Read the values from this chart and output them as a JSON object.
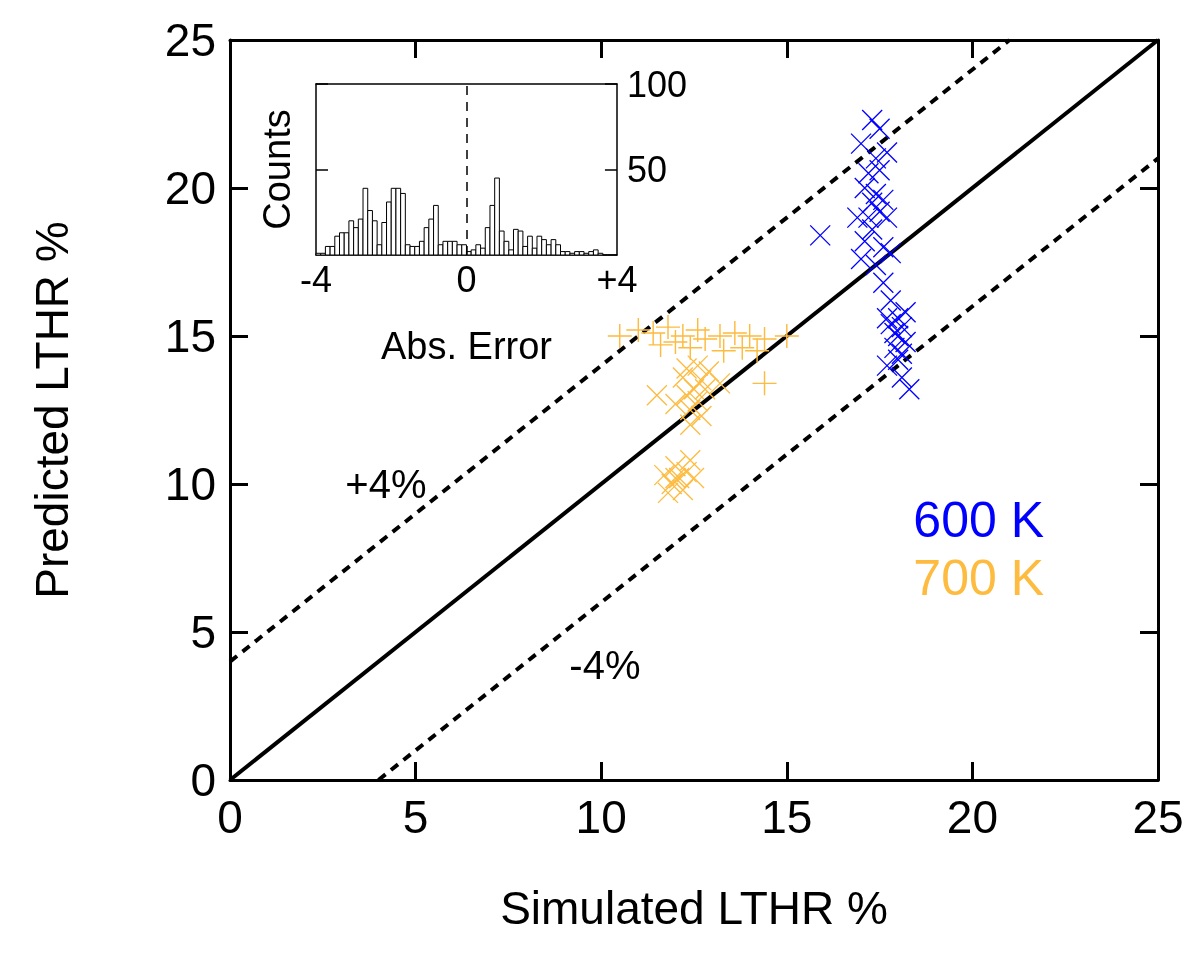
{
  "chart_data": [
    {
      "type": "scatter",
      "xlabel": "Simulated LTHR %",
      "ylabel": "Predicted LTHR %",
      "xlim": [
        0,
        25
      ],
      "ylim": [
        0,
        25
      ],
      "xticks": [
        0,
        5,
        10,
        15,
        20,
        25
      ],
      "yticks": [
        0,
        5,
        10,
        15,
        20,
        25
      ],
      "grid": false,
      "legend": "right",
      "annotations": [
        "+4%",
        "-4%"
      ],
      "series": [
        {
          "type": "line",
          "color": "#000000",
          "line_style": "solid",
          "marker": "none",
          "x": [
            0,
            25
          ],
          "values": [
            0,
            25
          ]
        },
        {
          "type": "line",
          "color": "#000000",
          "line_style": "dashed",
          "marker": "none",
          "x": [
            0,
            21
          ],
          "values": [
            4,
            25
          ]
        },
        {
          "type": "line",
          "color": "#000000",
          "line_style": "dashed",
          "marker": "none",
          "x": [
            4,
            25
          ],
          "values": [
            0,
            21
          ]
        },
        {
          "name": "600 K",
          "color": "#0000ff",
          "marker": "cross",
          "x": [
            17.3,
            17.2,
            17.4,
            17.5,
            17.1,
            17.3,
            17.6,
            17.2,
            17.4,
            17.0,
            17.5,
            17.3,
            17.7,
            17.1,
            17.6,
            17.0,
            17.4,
            17.8,
            17.5,
            16.9,
            17.7,
            15.9,
            17.6,
            17.8,
            17.7,
            18.0,
            17.9,
            18.1,
            17.8,
            18.2,
            18.0,
            17.7,
            18.1,
            18.3,
            18.2,
            17.9,
            18.0,
            18.1
          ],
          "values": [
            19.5,
            19.0,
            19.8,
            19.2,
            20.0,
            18.6,
            19.6,
            20.5,
            21.0,
            21.5,
            22.0,
            22.3,
            21.2,
            18.2,
            18.0,
            17.6,
            17.4,
            17.8,
            20.6,
            19.0,
            19.0,
            18.4,
            16.8,
            16.2,
            15.6,
            15.0,
            14.6,
            15.3,
            15.4,
            14.8,
            14.2,
            14.0,
            13.6,
            13.2,
            15.8,
            15.1,
            15.6,
            14.4
          ]
        },
        {
          "name": "700 K",
          "color": "#fdbb3f",
          "marker": "cross",
          "x": [
            12.5,
            12.3,
            12.7,
            12.6,
            12.2,
            12.8,
            12.4,
            12.9,
            13.2,
            11.5,
            12.0,
            12.6,
            12.4,
            12.3,
            12.7,
            12.1,
            11.9,
            12.3,
            12.0,
            12.2,
            11.7,
            12.5,
            11.8,
            12.4,
            12.0
          ],
          "values": [
            13.2,
            13.0,
            13.5,
            12.8,
            13.6,
            13.2,
            12.5,
            13.8,
            13.4,
            13.0,
            12.7,
            14.0,
            12.0,
            13.9,
            12.3,
            10.2,
            10.0,
            10.4,
            10.6,
            9.8,
            10.3,
            10.2,
            9.7,
            10.8,
            10.2
          ]
        },
        {
          "color": "#fdbb3f",
          "x": [
            11.0,
            11.4,
            11.8,
            12.2,
            12.6,
            11.6,
            12.0,
            12.4,
            12.8,
            13.2,
            13.6,
            14.0,
            14.4,
            13.8,
            14.2,
            15.0,
            10.5,
            13.3,
            14.4
          ],
          "values": [
            15.2,
            15.1,
            15.3,
            15.0,
            15.2,
            14.7,
            14.8,
            14.6,
            14.9,
            15.0,
            15.1,
            15.0,
            14.9,
            14.6,
            14.5,
            15.0,
            15.0,
            14.5,
            13.4
          ]
        }
      ]
    },
    {
      "type": "histogram",
      "xlabel": "Abs. Error",
      "ylabel": "Counts",
      "xlim": [
        -4,
        4
      ],
      "ylim": [
        0,
        100
      ],
      "xticks": [
        -4,
        0,
        {
          "value": 4,
          "label": "+4"
        }
      ],
      "yticks": [
        50,
        100
      ],
      "grid": false,
      "ref_lines": [
        {
          "axis": "x",
          "value": 0,
          "line_style": "dashed",
          "color": "#000000"
        }
      ],
      "bins": [
        -4,
        -3.875,
        -3.75,
        -3.625,
        -3.5,
        -3.375,
        -3.25,
        -3.125,
        -3,
        -2.875,
        -2.75,
        -2.625,
        -2.5,
        -2.375,
        -2.25,
        -2.125,
        -2,
        -1.875,
        -1.75,
        -1.625,
        -1.5,
        -1.375,
        -1.25,
        -1.125,
        -1,
        -0.875,
        -0.75,
        -0.625,
        -0.5,
        -0.375,
        -0.25,
        -0.125,
        0,
        0.125,
        0.25,
        0.375,
        0.5,
        0.625,
        0.75,
        0.875,
        1,
        1.125,
        1.25,
        1.375,
        1.5,
        1.625,
        1.75,
        1.875,
        2,
        2.125,
        2.25,
        2.375,
        2.5,
        2.625,
        2.75,
        2.875,
        3,
        3.125,
        3.25,
        3.375,
        3.5,
        3.625,
        3.75,
        3.875,
        4
      ],
      "values": [
        1,
        1,
        5,
        5,
        11,
        13,
        13,
        20,
        16,
        21,
        39,
        26,
        20,
        6,
        19,
        31,
        39,
        39,
        36,
        6,
        5,
        5,
        8,
        16,
        21,
        29,
        6,
        8,
        8,
        8,
        6,
        6,
        2,
        3,
        6,
        4,
        16,
        29,
        45,
        14,
        8,
        3,
        15,
        14,
        5,
        11,
        4,
        11,
        9,
        6,
        9,
        6,
        2,
        2,
        1,
        2,
        2,
        1,
        2,
        3,
        1,
        0,
        0,
        0
      ]
    }
  ]
}
